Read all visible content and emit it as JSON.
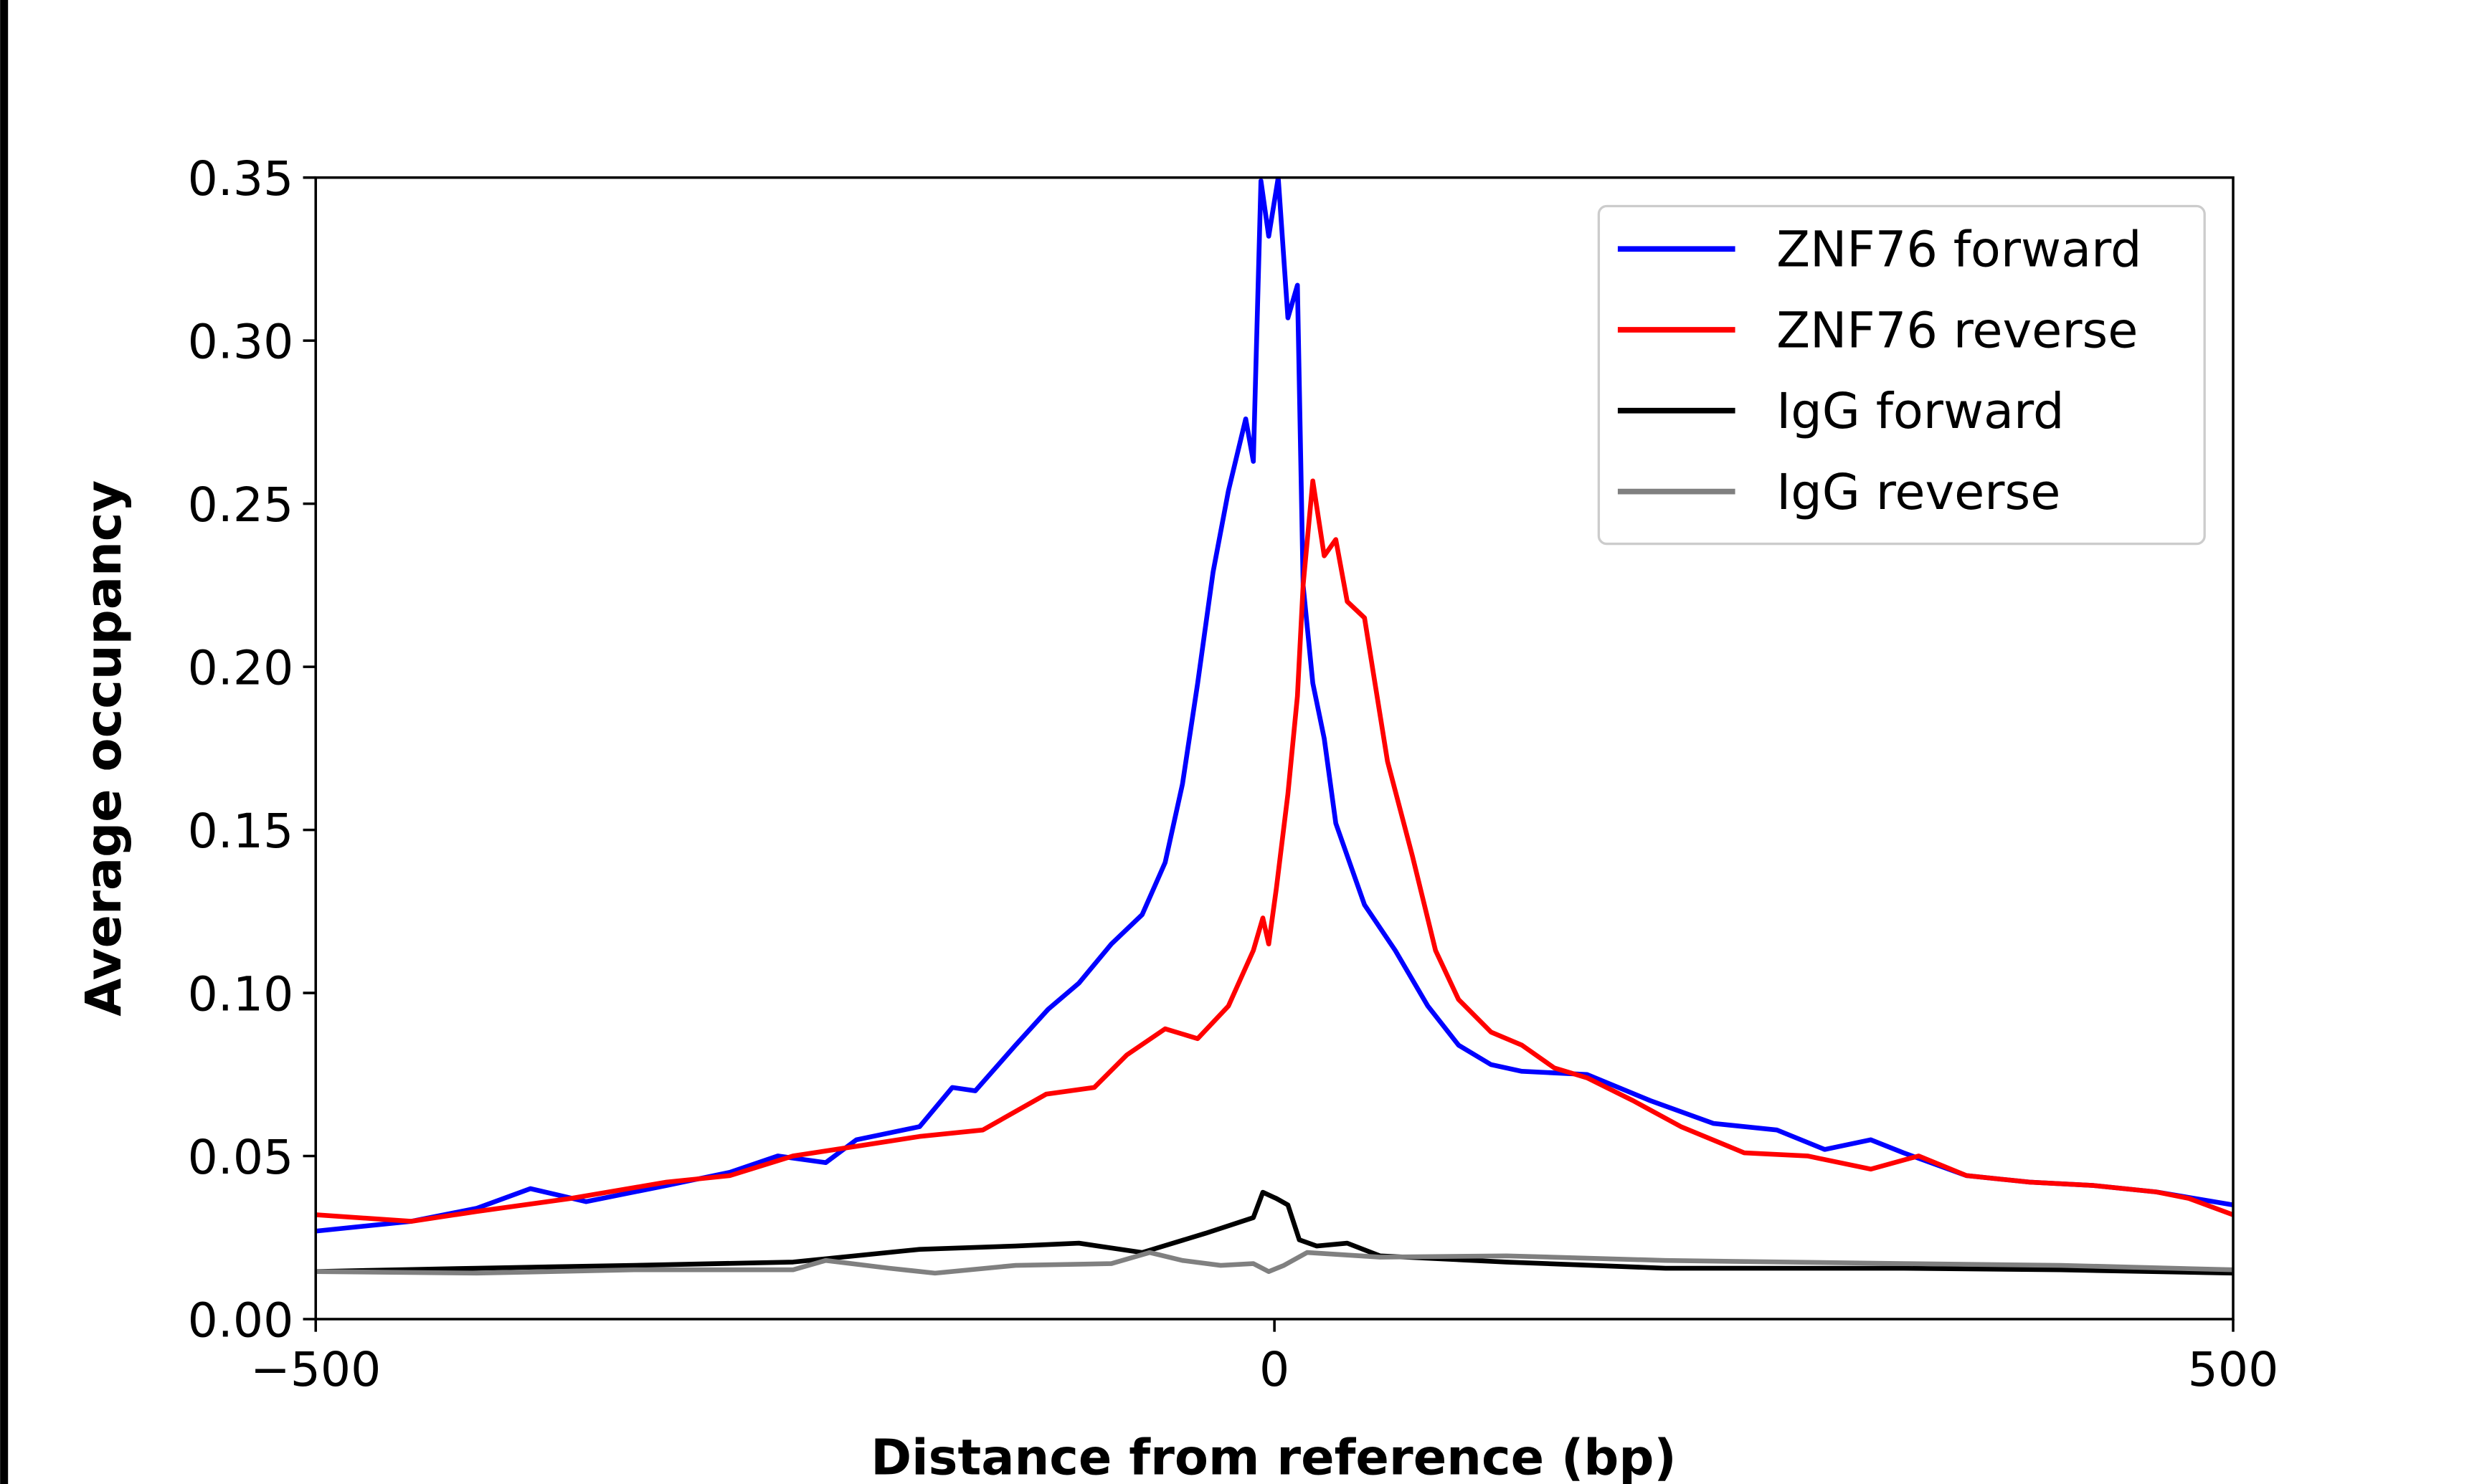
{
  "chart_data": {
    "type": "line",
    "title": "",
    "xlabel": "Distance from reference (bp)",
    "ylabel": "Average occupancy",
    "xlim": [
      -500,
      500
    ],
    "ylim": [
      0,
      0.35
    ],
    "xticks": [
      -500,
      0,
      500
    ],
    "xtick_labels": [
      "−500",
      "0",
      "500"
    ],
    "yticks": [
      0,
      0.05,
      0.1,
      0.15,
      0.2,
      0.25,
      0.3,
      0.35
    ],
    "ytick_labels": [
      "0.00",
      "0.05",
      "0.10",
      "0.15",
      "0.20",
      "0.25",
      "0.30",
      "0.35"
    ],
    "grid": false,
    "legend_position": "top-right",
    "series": [
      {
        "name": "ZNF76 forward",
        "color": "#0000ff",
        "x": [
          -500,
          -450,
          -416,
          -388,
          -359,
          -317,
          -284,
          -259,
          -234,
          -218,
          -185,
          -168,
          -156,
          -135,
          -118,
          -102,
          -85,
          -69,
          -57,
          -48,
          -40,
          -32,
          -24,
          -15,
          -11,
          -7,
          -3,
          2,
          7,
          12,
          15,
          20,
          26,
          32,
          47,
          63,
          80,
          96,
          113,
          129,
          163,
          196,
          229,
          262,
          287,
          311,
          328,
          361,
          394,
          427,
          460,
          500
        ],
        "y": [
          0.027,
          0.03,
          0.034,
          0.04,
          0.036,
          0.041,
          0.045,
          0.05,
          0.048,
          0.055,
          0.059,
          0.071,
          0.07,
          0.084,
          0.095,
          0.103,
          0.115,
          0.124,
          0.14,
          0.164,
          0.195,
          0.229,
          0.254,
          0.276,
          0.263,
          0.349,
          0.332,
          0.35,
          0.307,
          0.317,
          0.225,
          0.195,
          0.178,
          0.152,
          0.127,
          0.113,
          0.096,
          0.084,
          0.078,
          0.076,
          0.075,
          0.067,
          0.06,
          0.058,
          0.052,
          0.055,
          0.051,
          0.044,
          0.042,
          0.041,
          0.039,
          0.035
        ]
      },
      {
        "name": "ZNF76 reverse",
        "color": "#ff0000",
        "x": [
          -500,
          -450,
          -416,
          -367,
          -317,
          -284,
          -251,
          -218,
          -185,
          -152,
          -119,
          -94,
          -77,
          -57,
          -40,
          -24,
          -11,
          -6,
          -3,
          1,
          7,
          12,
          15,
          20,
          26,
          32,
          38,
          47,
          59,
          72,
          84,
          96,
          113,
          129,
          146,
          163,
          187,
          212,
          245,
          278,
          311,
          336,
          361,
          394,
          427,
          460,
          477,
          500
        ],
        "y": [
          0.032,
          0.03,
          0.033,
          0.037,
          0.042,
          0.044,
          0.05,
          0.053,
          0.056,
          0.058,
          0.069,
          0.071,
          0.081,
          0.089,
          0.086,
          0.096,
          0.113,
          0.123,
          0.115,
          0.132,
          0.161,
          0.191,
          0.225,
          0.257,
          0.234,
          0.239,
          0.22,
          0.215,
          0.171,
          0.142,
          0.113,
          0.098,
          0.088,
          0.084,
          0.077,
          0.074,
          0.067,
          0.059,
          0.051,
          0.05,
          0.046,
          0.05,
          0.044,
          0.042,
          0.041,
          0.039,
          0.037,
          0.032
        ]
      },
      {
        "name": "IgG forward",
        "color": "#000000",
        "x": [
          -500,
          -416,
          -334,
          -251,
          -185,
          -135,
          -102,
          -69,
          -36,
          -11,
          -6,
          1,
          7,
          13,
          22,
          38,
          55,
          121,
          204,
          328,
          410,
          500
        ],
        "y": [
          0.0146,
          0.0156,
          0.0165,
          0.0175,
          0.0214,
          0.0224,
          0.0233,
          0.0204,
          0.0263,
          0.0311,
          0.0389,
          0.037,
          0.035,
          0.0243,
          0.0224,
          0.0233,
          0.0194,
          0.0175,
          0.0156,
          0.0156,
          0.0151,
          0.0141
        ]
      },
      {
        "name": "IgG reverse",
        "color": "#808080",
        "x": [
          -500,
          -416,
          -334,
          -251,
          -234,
          -201,
          -177,
          -135,
          -85,
          -65,
          -48,
          -28,
          -11,
          -3,
          5,
          17,
          55,
          121,
          204,
          328,
          410,
          500
        ],
        "y": [
          0.0146,
          0.0141,
          0.0151,
          0.0151,
          0.018,
          0.0156,
          0.0141,
          0.0165,
          0.017,
          0.0204,
          0.018,
          0.0165,
          0.017,
          0.0146,
          0.0165,
          0.0204,
          0.019,
          0.0194,
          0.018,
          0.017,
          0.0165,
          0.0151
        ]
      }
    ]
  }
}
